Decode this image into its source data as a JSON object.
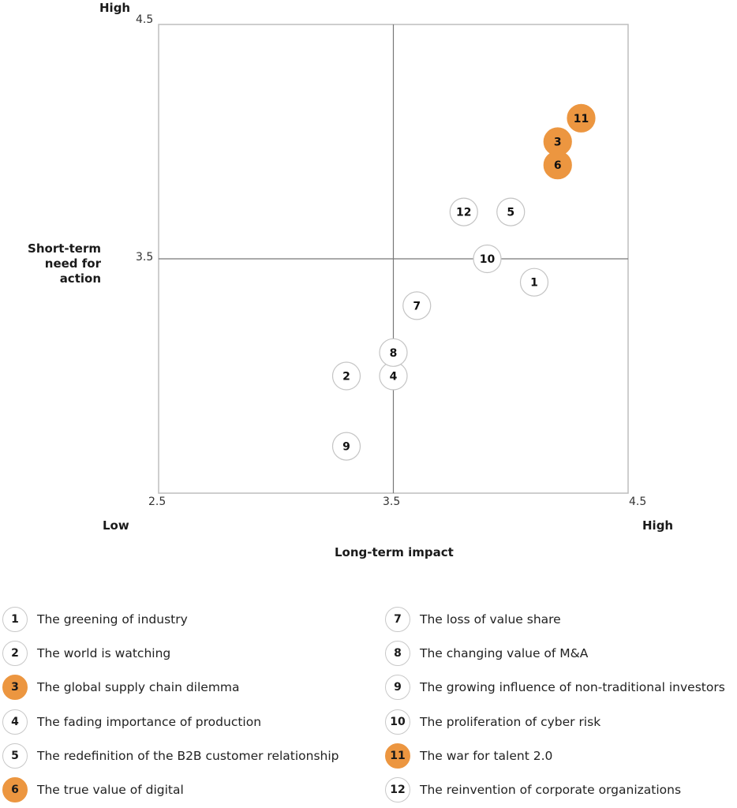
{
  "chart_data": {
    "type": "scatter",
    "xlabel": "Long-term impact",
    "ylabel": "Short-term need for action",
    "ylabel_lines": [
      "Short-term",
      "need for action"
    ],
    "x_low_label": "Low",
    "x_high_label": "High",
    "y_high_label": "High",
    "xlim": [
      2.5,
      4.5
    ],
    "ylim": [
      2.5,
      4.5
    ],
    "x_ticks": [
      "2.5",
      "3.5",
      "4.5"
    ],
    "y_ticks": [
      "4.5",
      "3.5"
    ],
    "quadrant_lines": {
      "x": 3.5,
      "y": 3.5
    },
    "grid": false,
    "highlight_color": "#ec9640",
    "points": [
      {
        "id": "1",
        "x": 4.1,
        "y": 3.4,
        "highlight": false
      },
      {
        "id": "2",
        "x": 3.3,
        "y": 3.0,
        "highlight": false
      },
      {
        "id": "3",
        "x": 4.2,
        "y": 4.0,
        "highlight": true
      },
      {
        "id": "4",
        "x": 3.5,
        "y": 3.0,
        "highlight": false
      },
      {
        "id": "5",
        "x": 4.0,
        "y": 3.7,
        "highlight": false
      },
      {
        "id": "6",
        "x": 4.2,
        "y": 3.9,
        "highlight": true
      },
      {
        "id": "7",
        "x": 3.6,
        "y": 3.3,
        "highlight": false
      },
      {
        "id": "8",
        "x": 3.5,
        "y": 3.1,
        "highlight": false
      },
      {
        "id": "9",
        "x": 3.3,
        "y": 2.7,
        "highlight": false
      },
      {
        "id": "10",
        "x": 3.9,
        "y": 3.5,
        "highlight": false
      },
      {
        "id": "11",
        "x": 4.3,
        "y": 4.1,
        "highlight": true
      },
      {
        "id": "12",
        "x": 3.8,
        "y": 3.7,
        "highlight": false
      }
    ],
    "legend": [
      {
        "id": "1",
        "label": "The greening of industry",
        "highlight": false
      },
      {
        "id": "2",
        "label": "The world is watching",
        "highlight": false
      },
      {
        "id": "3",
        "label": "The global supply chain dilemma",
        "highlight": true
      },
      {
        "id": "4",
        "label": "The fading importance of production",
        "highlight": false
      },
      {
        "id": "5",
        "label": "The redefinition of the B2B customer relationship",
        "highlight": false
      },
      {
        "id": "6",
        "label": "The true value of digital",
        "highlight": true
      },
      {
        "id": "7",
        "label": "The loss of value share",
        "highlight": false
      },
      {
        "id": "8",
        "label": "The changing value of M&A",
        "highlight": false
      },
      {
        "id": "9",
        "label": "The growing influence of non-traditional investors",
        "highlight": false
      },
      {
        "id": "10",
        "label": "The proliferation of cyber risk",
        "highlight": false
      },
      {
        "id": "11",
        "label": "The war for talent 2.0",
        "highlight": true
      },
      {
        "id": "12",
        "label": "The reinvention of corporate organizations",
        "highlight": false
      }
    ]
  }
}
